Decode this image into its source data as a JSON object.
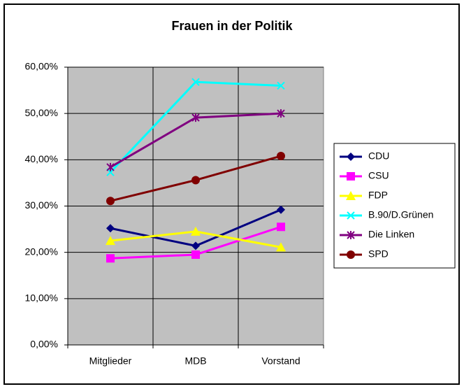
{
  "chart_data": {
    "type": "line",
    "title": "Frauen in der Politik",
    "categories": [
      "Mitglieder",
      "MDB",
      "Vorstand"
    ],
    "ylim": [
      0,
      60
    ],
    "yticks": [
      {
        "value": 0,
        "label": "0,00%"
      },
      {
        "value": 10,
        "label": "10,00%"
      },
      {
        "value": 20,
        "label": "20,00%"
      },
      {
        "value": 30,
        "label": "30,00%"
      },
      {
        "value": 40,
        "label": "40,00%"
      },
      {
        "value": 50,
        "label": "50,00%"
      },
      {
        "value": 60,
        "label": "60,00%"
      }
    ],
    "grid": true,
    "plot_background": "#c0c0c0",
    "legend": "right",
    "series": [
      {
        "name": "CDU",
        "color": "#000080",
        "marker": "diamond",
        "values": [
          25.2,
          21.4,
          29.2
        ]
      },
      {
        "name": "CSU",
        "color": "#ff00ff",
        "marker": "square",
        "values": [
          18.7,
          19.5,
          25.5
        ]
      },
      {
        "name": "FDP",
        "color": "#ffff00",
        "marker": "triangle",
        "values": [
          22.5,
          24.5,
          21.1
        ]
      },
      {
        "name": "B.90/D.Grünen",
        "color": "#00ffff",
        "marker": "x",
        "values": [
          37.3,
          56.8,
          56.0
        ]
      },
      {
        "name": "Die Linken",
        "color": "#800080",
        "marker": "star",
        "values": [
          38.4,
          49.1,
          50.0
        ]
      },
      {
        "name": "SPD",
        "color": "#800000",
        "marker": "circle",
        "values": [
          31.1,
          35.6,
          40.8
        ]
      }
    ]
  }
}
